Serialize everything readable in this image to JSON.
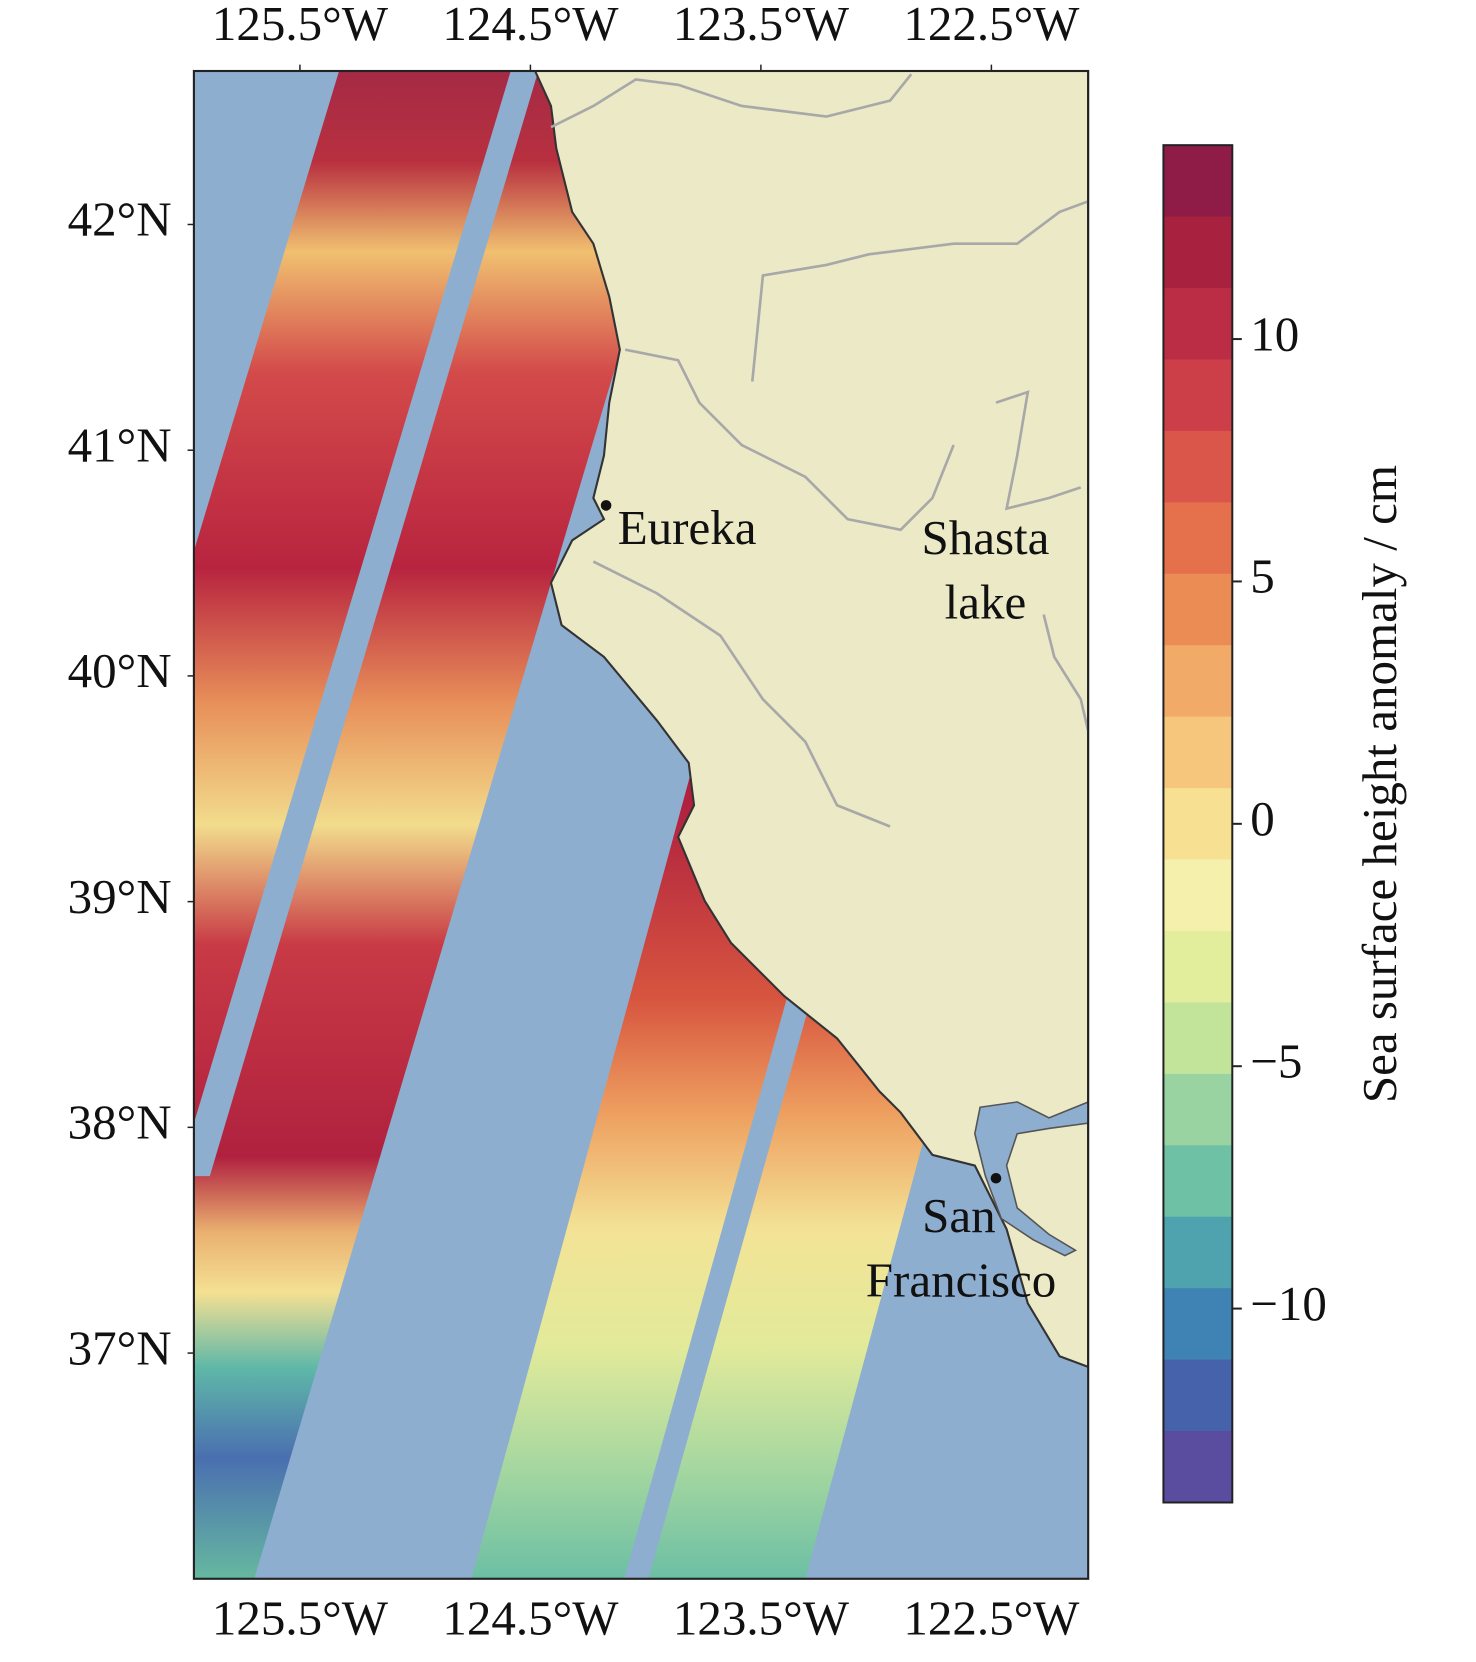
{
  "map": {
    "xlim": [
      -125.96,
      -122.08
    ],
    "ylim": [
      36.0,
      42.68
    ],
    "xticks": [
      {
        "value": -125.5,
        "label": "125.5°W"
      },
      {
        "value": -124.5,
        "label": "124.5°W"
      },
      {
        "value": -123.5,
        "label": "123.5°W"
      },
      {
        "value": -122.5,
        "label": "122.5°W"
      }
    ],
    "yticks": [
      {
        "value": 42,
        "label": "42°N"
      },
      {
        "value": 41,
        "label": "41°N"
      },
      {
        "value": 40,
        "label": "40°N"
      },
      {
        "value": 39,
        "label": "39°N"
      },
      {
        "value": 38,
        "label": "38°N"
      },
      {
        "value": 37,
        "label": "37°N"
      }
    ],
    "places": [
      {
        "lines": [
          "Eureka"
        ]
      },
      {
        "lines": [
          "Shasta",
          "lake"
        ]
      },
      {
        "lines": [
          "San",
          "Francisco"
        ]
      }
    ],
    "colorbar": {
      "label": "Sea surface height anomaly / cm",
      "lim": [
        -14,
        14
      ],
      "ticks": [
        10,
        5,
        0,
        {
          "value": -5,
          "label": "−5"
        },
        {
          "value": -10,
          "label": "−10"
        }
      ],
      "colors": [
        "#8e1c47",
        "#a8213f",
        "#bb2d45",
        "#cc3f48",
        "#da564a",
        "#e4704c",
        "#ec8c55",
        "#f2aa68",
        "#f5c67c",
        "#f7e092",
        "#f5f0ac",
        "#e2ee9c",
        "#c2e49a",
        "#99d3a2",
        "#6fc1a6",
        "#4fa3ae",
        "#3f82b4",
        "#4662ab",
        "#5a4c9e"
      ]
    }
  }
}
